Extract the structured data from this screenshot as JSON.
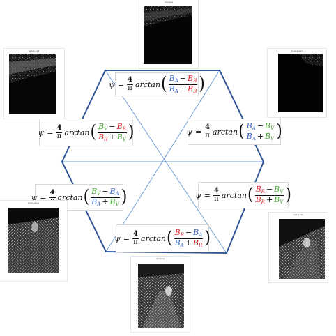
{
  "colors": {
    "hexagon_outer": "#2f5597",
    "hexagon_inner": "#6f9fd8",
    "band_A": "#3a66c4",
    "band_B": "#e2202a",
    "band_V": "#4aa837",
    "text": "#111111"
  },
  "formula_common": {
    "psi": "ψ",
    "equals": "=",
    "coef_num": "4",
    "coef_den": "π",
    "fn": "arctan",
    "plus": "+",
    "minus": "−",
    "band_letter": "B"
  },
  "formulas": [
    {
      "id": "top",
      "num": [
        "A",
        "B"
      ],
      "den": [
        "A",
        "B"
      ]
    },
    {
      "id": "right-upper",
      "num": [
        "A",
        "V"
      ],
      "den": [
        "A",
        "V"
      ]
    },
    {
      "id": "right-lower",
      "num": [
        "R",
        "V"
      ],
      "den": [
        "R",
        "V"
      ]
    },
    {
      "id": "bottom",
      "num": [
        "R",
        "A"
      ],
      "den": [
        "A",
        "R"
      ]
    },
    {
      "id": "left-lower",
      "num": [
        "V",
        "A"
      ],
      "den": [
        "A",
        "V"
      ]
    },
    {
      "id": "left-upper",
      "num": [
        "V",
        "B"
      ],
      "den": [
        "R",
        "V"
      ]
    }
  ],
  "photos": [
    {
      "id": "top",
      "caption": "red-blue",
      "style": "dark"
    },
    {
      "id": "right-upper",
      "caption": "blue-green",
      "style": "dark"
    },
    {
      "id": "right-lower",
      "caption": "red-green",
      "style": "road"
    },
    {
      "id": "bottom",
      "caption": "red-blue",
      "style": "road"
    },
    {
      "id": "left-lower",
      "caption": "green-blue",
      "style": "road"
    },
    {
      "id": "left-upper",
      "caption": "green-red",
      "style": "dark"
    }
  ]
}
